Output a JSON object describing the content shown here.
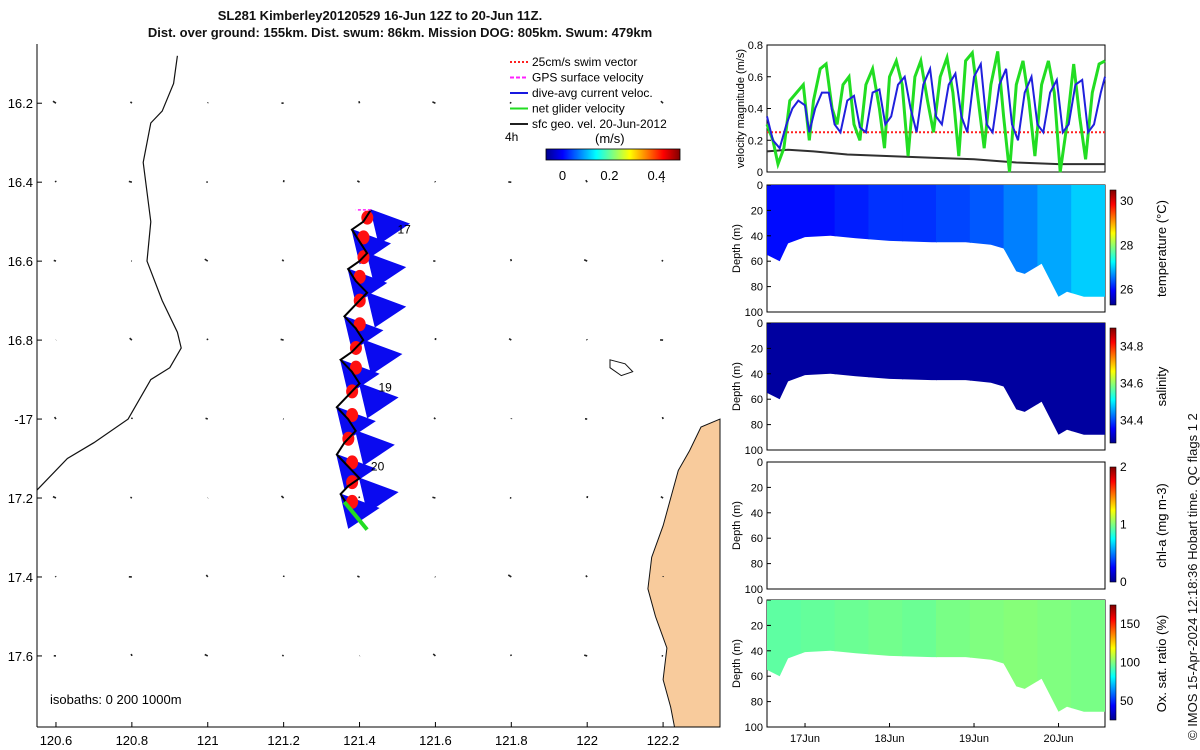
{
  "title_line1": "SL281 Kimberley20120529 16-Jun 12Z to 20-Jun 11Z.",
  "title_line2": "Dist. over ground: 155km. Dist. swum: 86km. Mission DOG: 805km. Swum: 479km",
  "copyright": "© IMOS 15-Apr-2024 12:18:36 Hobart time. QC flags 1  2",
  "colors": {
    "swim": "#ff2020",
    "gps": "#ff20ff",
    "dive": "#1818e0",
    "net": "#22dd22",
    "sfc": "#202020",
    "land": "#f8cb9c",
    "track_fill": "#0a0af0",
    "red_patch": "#ff1010"
  },
  "chart_data": [
    {
      "type": "map",
      "xlim": [
        120.55,
        122.35
      ],
      "ylim": [
        -17.78,
        -16.05
      ],
      "xticks": [
        120.6,
        120.8,
        121,
        121.2,
        121.4,
        121.6,
        121.8,
        122,
        122.2
      ],
      "xtick_labels": [
        "120.6",
        "120.8",
        "121",
        "121.2",
        "121.4",
        "121.6",
        "121.8",
        "122",
        "122.2"
      ],
      "yticks": [
        -16.2,
        -16.4,
        -16.6,
        -16.8,
        -17,
        -17.2,
        -17.4,
        -17.6
      ],
      "ytick_labels": [
        "16.2",
        "16.4",
        "16.6",
        "16.8",
        "-17",
        "17.2",
        "17.4",
        "17.6"
      ],
      "legend": [
        {
          "label": "25cm/s swim vector",
          "color": "#ff2020",
          "style": "dotted"
        },
        {
          "label": "GPS surface velocity",
          "color": "#ff20ff",
          "style": "dashed"
        },
        {
          "label": "dive-avg current veloc.",
          "color": "#1818e0",
          "style": "solid"
        },
        {
          "label": "net glider velocity",
          "color": "#22dd22",
          "style": "solid"
        },
        {
          "label": "sfc geo. vel. 20-Jun-2012",
          "color": "#202020",
          "style": "solid"
        }
      ],
      "colorbar": {
        "label": "(m/s)",
        "ticks": [
          0,
          0.2,
          0.4
        ],
        "range": [
          -0.07,
          0.5
        ],
        "extra_label": "4h"
      },
      "isobaths_label": "isobaths: 0   200  1000m",
      "day_labels": [
        {
          "text": "17",
          "lon": 121.5,
          "lat": -16.53
        },
        {
          "text": "19",
          "lon": 121.45,
          "lat": -16.93
        },
        {
          "text": "20",
          "lon": 121.43,
          "lat": -17.13
        }
      ],
      "track": [
        [
          121.43,
          -16.47
        ],
        [
          121.41,
          -16.5
        ],
        [
          121.38,
          -16.52
        ],
        [
          121.4,
          -16.55
        ],
        [
          121.42,
          -16.58
        ],
        [
          121.4,
          -16.6
        ],
        [
          121.37,
          -16.62
        ],
        [
          121.39,
          -16.65
        ],
        [
          121.42,
          -16.68
        ],
        [
          121.39,
          -16.71
        ],
        [
          121.36,
          -16.74
        ],
        [
          121.39,
          -16.77
        ],
        [
          121.41,
          -16.8
        ],
        [
          121.38,
          -16.83
        ],
        [
          121.35,
          -16.85
        ],
        [
          121.38,
          -16.88
        ],
        [
          121.4,
          -16.91
        ],
        [
          121.37,
          -16.94
        ],
        [
          121.34,
          -16.97
        ],
        [
          121.37,
          -17.0
        ],
        [
          121.39,
          -17.03
        ],
        [
          121.36,
          -17.06
        ],
        [
          121.34,
          -17.09
        ],
        [
          121.37,
          -17.12
        ],
        [
          121.4,
          -17.15
        ],
        [
          121.37,
          -17.17
        ],
        [
          121.35,
          -17.19
        ],
        [
          121.37,
          -17.22
        ]
      ],
      "net_velocity_arrow": [
        [
          121.36,
          -17.21
        ],
        [
          121.42,
          -17.28
        ]
      ],
      "gps_arrow": [
        [
          121.43,
          -16.47
        ],
        [
          121.39,
          -16.47
        ]
      ],
      "coastline": [
        [
          120.92,
          -16.08
        ],
        [
          120.91,
          -16.15
        ],
        [
          120.88,
          -16.22
        ],
        [
          120.85,
          -16.25
        ],
        [
          120.83,
          -16.35
        ],
        [
          120.85,
          -16.5
        ],
        [
          120.84,
          -16.6
        ],
        [
          120.88,
          -16.7
        ],
        [
          120.92,
          -16.78
        ],
        [
          120.93,
          -16.82
        ],
        [
          120.9,
          -16.87
        ],
        [
          120.85,
          -16.9
        ],
        [
          120.79,
          -17.0
        ],
        [
          120.7,
          -17.06
        ],
        [
          120.63,
          -17.1
        ],
        [
          120.55,
          -17.18
        ]
      ],
      "land": [
        [
          122.35,
          -17.0
        ],
        [
          122.3,
          -17.02
        ],
        [
          122.27,
          -17.08
        ],
        [
          122.24,
          -17.13
        ],
        [
          122.22,
          -17.2
        ],
        [
          122.2,
          -17.27
        ],
        [
          122.17,
          -17.35
        ],
        [
          122.16,
          -17.43
        ],
        [
          122.18,
          -17.5
        ],
        [
          122.21,
          -17.58
        ],
        [
          122.2,
          -17.66
        ],
        [
          122.22,
          -17.73
        ],
        [
          122.23,
          -17.78
        ],
        [
          122.35,
          -17.78
        ]
      ],
      "island": [
        [
          122.06,
          -16.85
        ],
        [
          122.1,
          -16.86
        ],
        [
          122.12,
          -16.88
        ],
        [
          122.09,
          -16.89
        ],
        [
          122.06,
          -16.87
        ]
      ]
    },
    {
      "type": "line",
      "ylabel": "velocity magnitude (m/s)",
      "xlim": [
        16.55,
        20.55
      ],
      "ylim": [
        0,
        0.8
      ],
      "yticks": [
        0,
        0.2,
        0.4,
        0.6,
        0.8
      ],
      "series": [
        {
          "name": "swim vector",
          "color": "#ff2020",
          "style": "dotted",
          "x": [
            16.55,
            20.55
          ],
          "y": [
            0.25,
            0.25
          ]
        },
        {
          "name": "sfc geo. vel.",
          "color": "#303030",
          "style": "solid",
          "x": [
            16.55,
            16.8,
            17.1,
            17.5,
            18.0,
            18.5,
            19.0,
            19.5,
            20.0,
            20.55
          ],
          "y": [
            0.13,
            0.14,
            0.13,
            0.11,
            0.1,
            0.09,
            0.08,
            0.06,
            0.05,
            0.05
          ]
        },
        {
          "name": "net glider velocity",
          "color": "#22dd22",
          "style": "solid",
          "x": [
            16.55,
            16.62,
            16.68,
            16.75,
            16.82,
            16.9,
            16.98,
            17.05,
            17.1,
            17.18,
            17.25,
            17.32,
            17.38,
            17.45,
            17.52,
            17.58,
            17.65,
            17.72,
            17.8,
            17.88,
            17.94,
            18.0,
            18.08,
            18.15,
            18.22,
            18.3,
            18.37,
            18.45,
            18.52,
            18.6,
            18.68,
            18.75,
            18.82,
            18.9,
            18.98,
            19.05,
            19.12,
            19.2,
            19.28,
            19.35,
            19.42,
            19.5,
            19.58,
            19.65,
            19.72,
            19.8,
            19.88,
            19.95,
            20.02,
            20.1,
            20.18,
            20.25,
            20.32,
            20.4,
            20.48,
            20.55
          ],
          "y": [
            0.3,
            0.2,
            0.05,
            0.15,
            0.45,
            0.5,
            0.55,
            0.2,
            0.45,
            0.65,
            0.68,
            0.4,
            0.3,
            0.55,
            0.6,
            0.3,
            0.2,
            0.55,
            0.65,
            0.4,
            0.15,
            0.6,
            0.7,
            0.55,
            0.1,
            0.6,
            0.7,
            0.45,
            0.25,
            0.6,
            0.72,
            0.5,
            0.1,
            0.7,
            0.75,
            0.45,
            0.15,
            0.55,
            0.76,
            0.35,
            0.0,
            0.55,
            0.7,
            0.45,
            0.1,
            0.55,
            0.7,
            0.5,
            0.0,
            0.3,
            0.68,
            0.35,
            0.08,
            0.5,
            0.68,
            0.7
          ]
        },
        {
          "name": "dive-avg current veloc.",
          "color": "#2020dd",
          "style": "solid",
          "x": [
            16.55,
            16.62,
            16.7,
            16.78,
            16.85,
            16.92,
            17.0,
            17.05,
            17.12,
            17.2,
            17.28,
            17.35,
            17.42,
            17.5,
            17.58,
            17.65,
            17.72,
            17.8,
            17.88,
            17.95,
            18.02,
            18.1,
            18.18,
            18.25,
            18.32,
            18.4,
            18.48,
            18.55,
            18.62,
            18.7,
            18.78,
            18.85,
            18.92,
            19.0,
            19.08,
            19.15,
            19.22,
            19.3,
            19.38,
            19.45,
            19.52,
            19.6,
            19.68,
            19.75,
            19.82,
            19.9,
            19.98,
            20.05,
            20.12,
            20.2,
            20.28,
            20.35,
            20.42,
            20.5,
            20.55
          ],
          "y": [
            0.35,
            0.2,
            0.15,
            0.3,
            0.4,
            0.45,
            0.42,
            0.25,
            0.4,
            0.5,
            0.5,
            0.3,
            0.25,
            0.45,
            0.48,
            0.28,
            0.25,
            0.5,
            0.52,
            0.3,
            0.35,
            0.55,
            0.6,
            0.4,
            0.25,
            0.55,
            0.65,
            0.35,
            0.3,
            0.55,
            0.62,
            0.35,
            0.25,
            0.6,
            0.68,
            0.3,
            0.25,
            0.55,
            0.65,
            0.3,
            0.2,
            0.5,
            0.6,
            0.3,
            0.25,
            0.5,
            0.58,
            0.25,
            0.3,
            0.55,
            0.58,
            0.25,
            0.3,
            0.5,
            0.6
          ]
        }
      ]
    },
    {
      "type": "section",
      "ylabel": "Depth (m)",
      "colorbar_label": "temperature (°C)",
      "colorbar_ticks": [
        "26",
        "28",
        "30"
      ],
      "colorbar_range": [
        25.3,
        30.5
      ],
      "yticks": [
        0,
        20,
        40,
        60,
        80,
        100
      ],
      "ylim": [
        0,
        100
      ],
      "colormap": "jet",
      "bottom_depth_x": [
        16.55,
        16.7,
        16.8,
        17.0,
        17.3,
        17.6,
        18.0,
        18.5,
        18.9,
        19.2,
        19.35,
        19.5,
        19.6,
        19.8,
        20.0,
        20.1,
        20.3,
        20.55
      ],
      "bottom_depth_y": [
        55,
        60,
        46,
        41,
        40,
        42,
        44,
        45,
        45,
        47,
        50,
        68,
        70,
        62,
        88,
        84,
        88,
        88
      ],
      "values": [
        26.0,
        26.0,
        26.1,
        26.2,
        26.2,
        26.3,
        26.4,
        26.6,
        26.8,
        27.0
      ]
    },
    {
      "type": "section",
      "ylabel": "Depth (m)",
      "colorbar_label": "salinity",
      "colorbar_ticks": [
        "34.4",
        "34.6",
        "34.8"
      ],
      "colorbar_range": [
        34.28,
        34.9
      ],
      "yticks": [
        0,
        20,
        40,
        60,
        80,
        100
      ],
      "ylim": [
        0,
        100
      ],
      "colormap": "jet",
      "bottom_depth_x": [
        16.55,
        16.7,
        16.8,
        17.0,
        17.3,
        17.6,
        18.0,
        18.5,
        18.9,
        19.2,
        19.35,
        19.5,
        19.6,
        19.8,
        20.0,
        20.1,
        20.3,
        20.55
      ],
      "bottom_depth_y": [
        55,
        60,
        46,
        41,
        40,
        42,
        44,
        45,
        45,
        47,
        50,
        68,
        70,
        62,
        88,
        84,
        88,
        88
      ],
      "values": [
        34.3,
        34.3,
        34.3,
        34.3,
        34.3,
        34.3,
        34.3,
        34.3,
        34.3,
        34.3
      ]
    },
    {
      "type": "section",
      "ylabel": "Depth (m)",
      "colorbar_label": "chl-a (mg m-3)",
      "colorbar_ticks": [
        "0",
        "1",
        "2"
      ],
      "colorbar_range": [
        0,
        2
      ],
      "yticks": [
        0,
        20,
        40,
        60,
        80,
        100
      ],
      "ylim": [
        0,
        100
      ],
      "colormap": "jet",
      "bottom_depth_x": [],
      "bottom_depth_y": [],
      "values": []
    },
    {
      "type": "section",
      "ylabel": "Depth (m)",
      "colorbar_label": "Ox. sat. ratio (%)",
      "colorbar_ticks": [
        "50",
        "100",
        "150"
      ],
      "colorbar_range": [
        25,
        175
      ],
      "yticks": [
        0,
        20,
        40,
        60,
        80,
        100
      ],
      "ylim": [
        0,
        100
      ],
      "colormap": "jet",
      "xticks": [
        17,
        18,
        19,
        20
      ],
      "xtick_labels": [
        "17Jun",
        "18Jun",
        "19Jun",
        "20Jun"
      ],
      "xlim": [
        16.55,
        20.55
      ],
      "bottom_depth_x": [
        16.55,
        16.7,
        16.8,
        17.0,
        17.3,
        17.6,
        18.0,
        18.5,
        18.9,
        19.2,
        19.35,
        19.5,
        19.6,
        19.8,
        20.0,
        20.1,
        20.3,
        20.55
      ],
      "bottom_depth_y": [
        55,
        60,
        46,
        41,
        40,
        42,
        44,
        45,
        45,
        47,
        50,
        68,
        70,
        62,
        88,
        84,
        88,
        88
      ],
      "values": [
        95,
        96,
        97,
        98,
        97,
        99,
        100,
        101,
        100,
        99
      ]
    }
  ]
}
